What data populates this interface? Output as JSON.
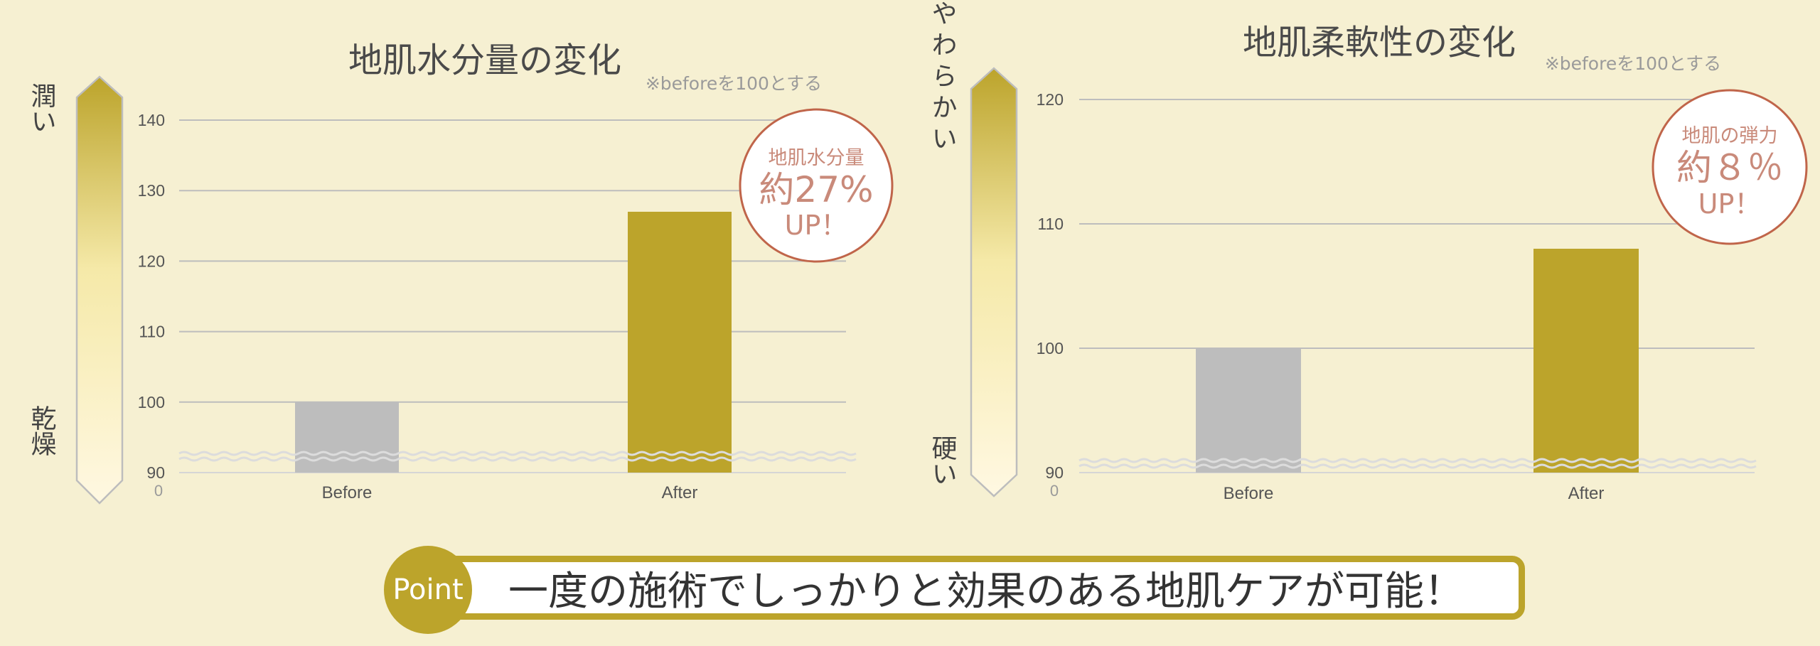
{
  "colors": {
    "background": "#f6f0d2",
    "gold": "#bca42b",
    "gray_bar": "#bdbdbd",
    "badge_outline": "#c0654a",
    "badge_text": "#c98a7a",
    "gridline": "#bdbdbd"
  },
  "chart_data": [
    {
      "type": "bar",
      "title": "地肌水分量の変化",
      "note": "※beforeを100とする",
      "categories": [
        "Before",
        "After"
      ],
      "values": [
        100,
        127
      ],
      "colors": [
        "#bdbdbd",
        "#bca42b"
      ],
      "yticks": [
        "90",
        "100",
        "110",
        "120",
        "130",
        "140"
      ],
      "ylim": [
        90,
        140
      ],
      "axis_break": true,
      "axis_zero_label": "0",
      "grid": true,
      "scale_top_label": "潤い",
      "scale_bottom_label": "乾燥",
      "badge": {
        "line1": "地肌水分量",
        "line2": "約27%",
        "line3": "UP！"
      }
    },
    {
      "type": "bar",
      "title": "地肌柔軟性の変化",
      "note": "※beforeを100とする",
      "categories": [
        "Before",
        "After"
      ],
      "values": [
        100,
        108
      ],
      "colors": [
        "#bdbdbd",
        "#bca42b"
      ],
      "yticks": [
        "90",
        "100",
        "110",
        "120"
      ],
      "ylim": [
        90,
        120
      ],
      "axis_break": true,
      "axis_zero_label": "0",
      "grid": true,
      "scale_top_label": "やわらかい",
      "scale_bottom_label": "硬い",
      "badge": {
        "line1": "地肌の弾力",
        "line2": "約８％",
        "line3": "UP！"
      }
    }
  ],
  "point": {
    "badge_label": "Point",
    "message": "一度の施術でしっかりと効果のある地肌ケアが可能！"
  }
}
